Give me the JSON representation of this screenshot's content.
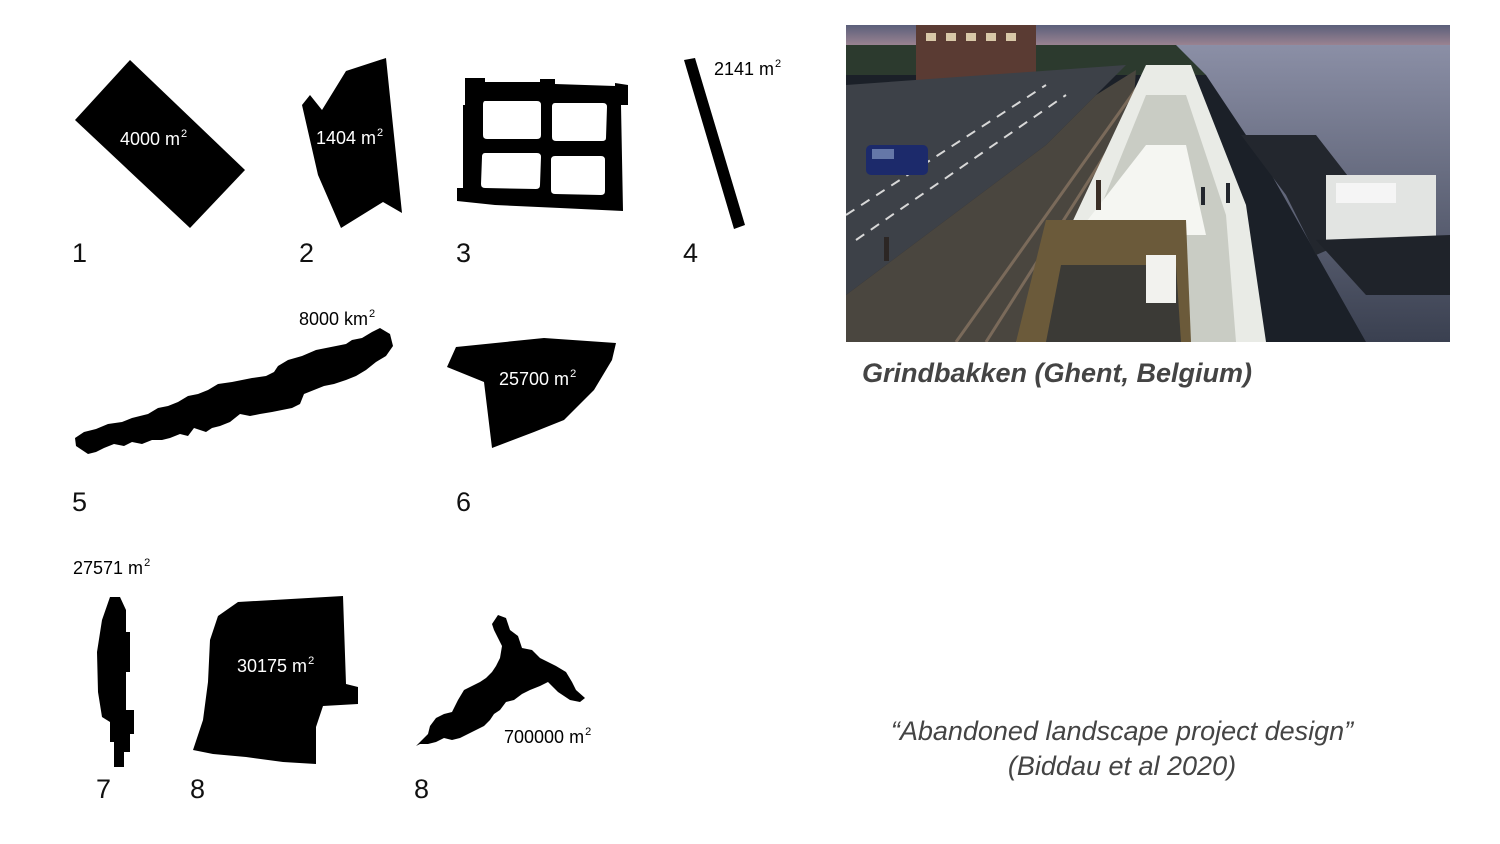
{
  "plots": [
    {
      "number": "1",
      "area_value": "4000 m",
      "area_exp": "2"
    },
    {
      "number": "2",
      "area_value": "1404 m",
      "area_exp": "2"
    },
    {
      "number": "3"
    },
    {
      "number": "4",
      "area_value": "2141 m",
      "area_exp": "2"
    },
    {
      "number": "5",
      "area_value": "8000 km",
      "area_exp": "2"
    },
    {
      "number": "6",
      "area_value": "25700 m",
      "area_exp": "2"
    },
    {
      "number": "7",
      "area_value": "27571 m",
      "area_exp": "2"
    },
    {
      "number": "8",
      "area_value": "30175 m",
      "area_exp": "2"
    },
    {
      "number": "8",
      "area_value": "700000 m",
      "area_exp": "2"
    }
  ],
  "photo": {
    "caption": "Grindbakken (Ghent, Belgium)"
  },
  "quote": {
    "line1": "“Abandoned landscape project design”",
    "line2": "(Biddau et al 2020)"
  }
}
